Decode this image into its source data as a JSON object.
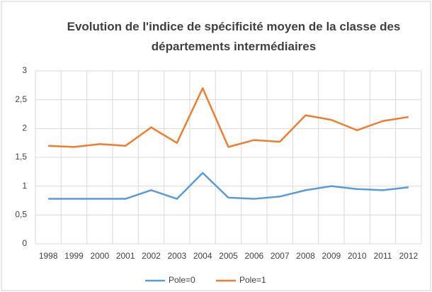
{
  "chart_data": {
    "type": "line",
    "title": "Evolution de l'indice de spécificité moyen de la classe des départements intermédiaires",
    "categories": [
      "1998",
      "1999",
      "2000",
      "2001",
      "2002",
      "2003",
      "2004",
      "2005",
      "2006",
      "2007",
      "2008",
      "2009",
      "2010",
      "2011",
      "2012"
    ],
    "series": [
      {
        "name": "Pole=0",
        "color": "#5b9bd5",
        "values": [
          0.78,
          0.78,
          0.78,
          0.78,
          0.93,
          0.78,
          1.23,
          0.8,
          0.78,
          0.82,
          0.93,
          1.0,
          0.95,
          0.93,
          0.98
        ]
      },
      {
        "name": "Pole=1",
        "color": "#ed7d31",
        "values": [
          1.7,
          1.68,
          1.73,
          1.7,
          2.02,
          1.75,
          2.7,
          1.68,
          1.8,
          1.77,
          2.23,
          2.15,
          1.97,
          2.13,
          2.2
        ]
      }
    ],
    "ylim": [
      0,
      3
    ],
    "yticks": [
      0,
      {
        "value": 0.5,
        "label": "0,5"
      },
      1,
      {
        "value": 1.5,
        "label": "1,5"
      },
      2,
      {
        "value": 2.5,
        "label": "2,5"
      },
      3
    ],
    "grid": true,
    "legend": "bottom"
  }
}
